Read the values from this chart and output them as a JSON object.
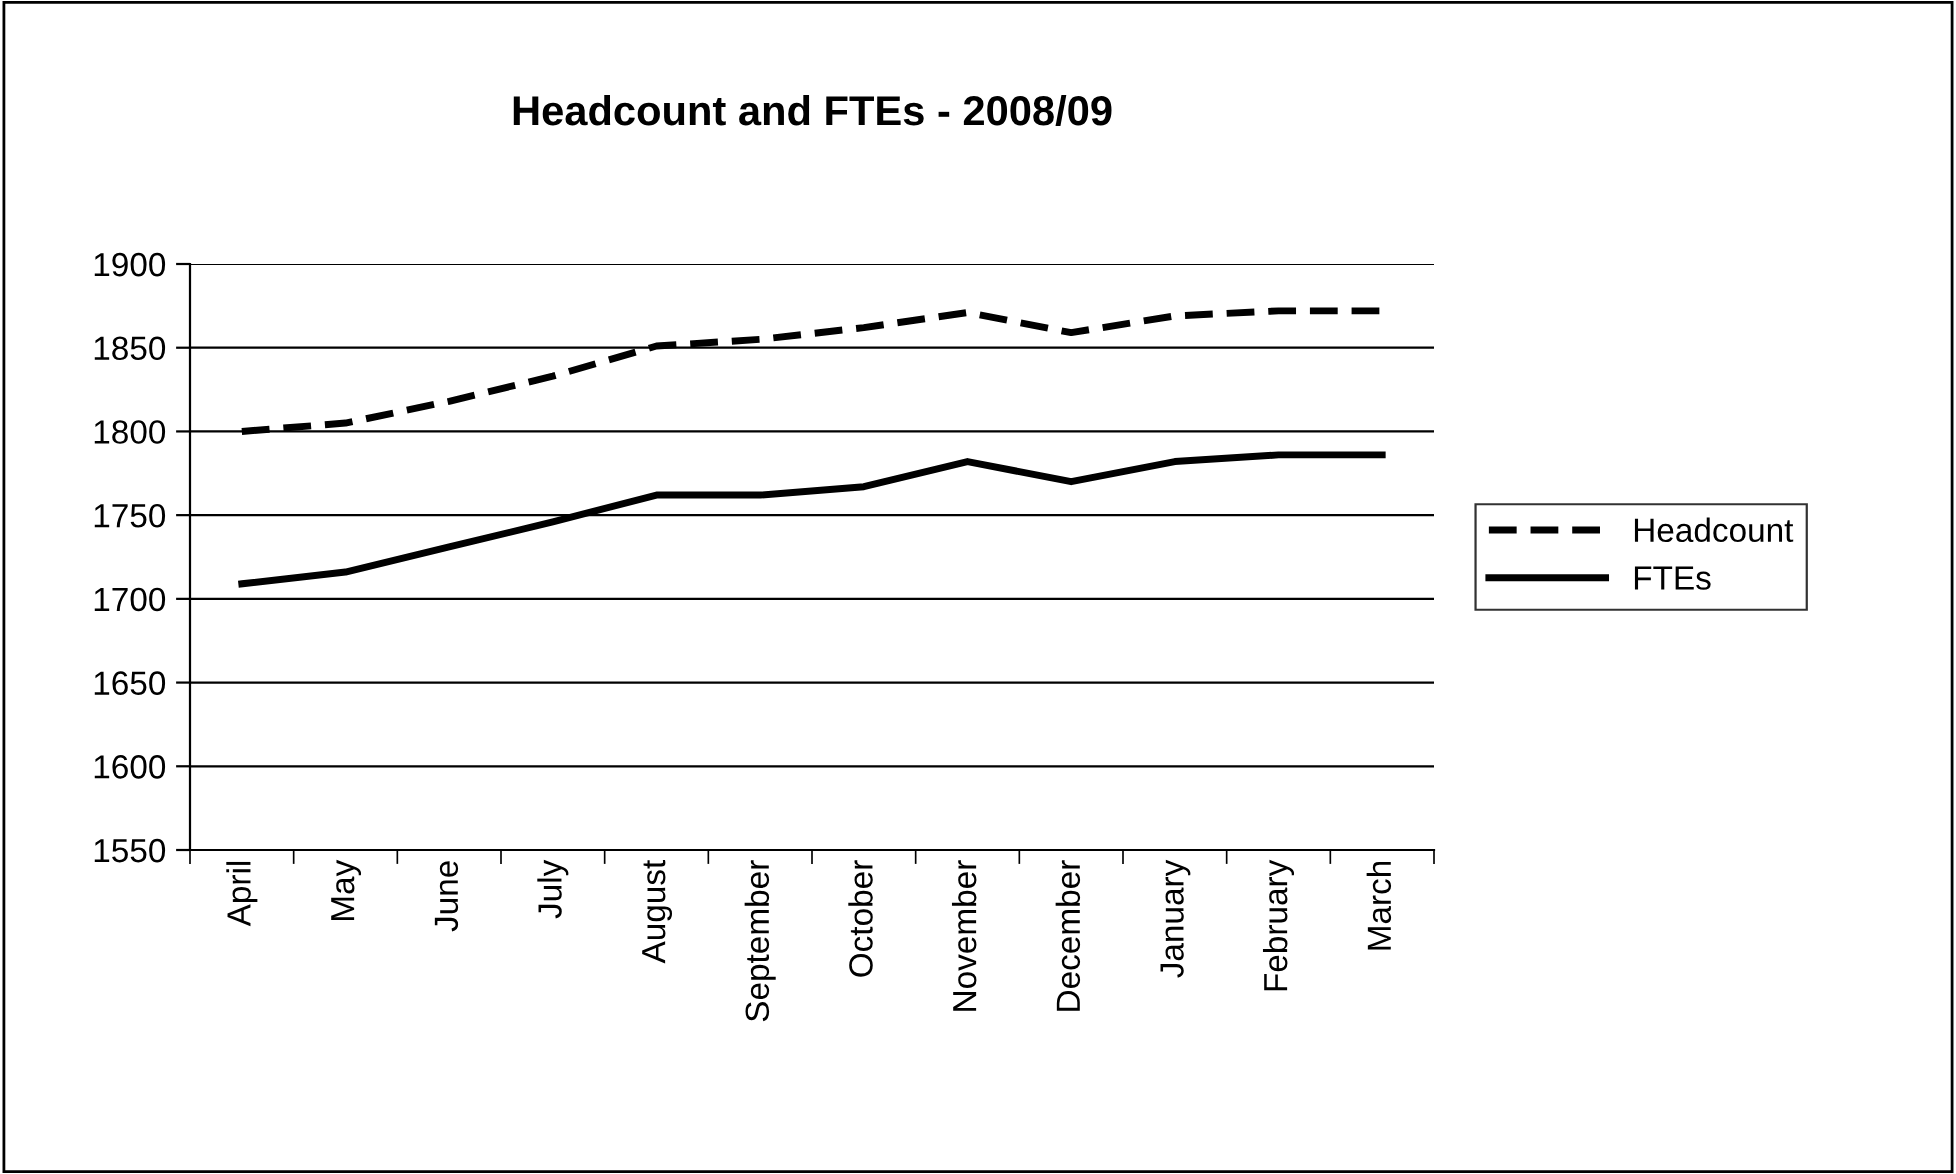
{
  "chart_data": {
    "type": "line",
    "title": "Headcount and FTEs - 2008/09",
    "categories": [
      "April",
      "May",
      "June",
      "July",
      "August",
      "September",
      "October",
      "November",
      "December",
      "January",
      "February",
      "March"
    ],
    "series": [
      {
        "name": "Headcount",
        "color": "#000000",
        "line_style": "dashed",
        "values": [
          1800,
          1805,
          1818,
          1833,
          1851,
          1855,
          1862,
          1871,
          1859,
          1869,
          1872,
          1872
        ]
      },
      {
        "name": "FTEs",
        "color": "#000000",
        "line_style": "solid",
        "values": [
          1709,
          1716,
          1731,
          1746,
          1762,
          1762,
          1767,
          1782,
          1770,
          1782,
          1786,
          1786
        ]
      }
    ],
    "ylim": [
      1550,
      1900
    ],
    "yticks": [
      1550,
      1600,
      1650,
      1700,
      1750,
      1800,
      1850,
      1900
    ],
    "grid": "y",
    "legend": "right",
    "marker": "none"
  }
}
